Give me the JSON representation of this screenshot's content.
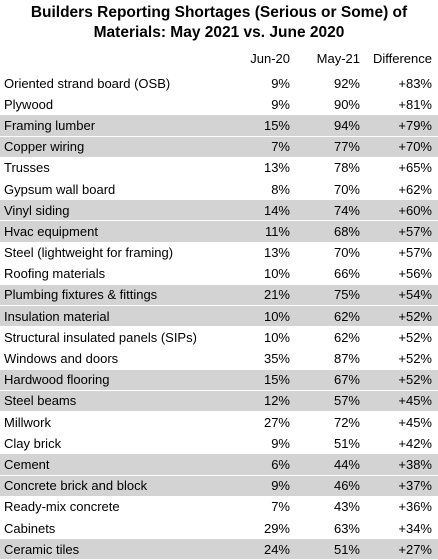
{
  "title": "Builders Reporting Shortages (Serious or Some) of Materials: May 2021 vs. June 2020",
  "columns": [
    "",
    "Jun-20",
    "May-21",
    "Difference"
  ],
  "rows": [
    {
      "name": "Oriented strand board (OSB)",
      "jun20": "9%",
      "may21": "92%",
      "diff": "+83%",
      "shaded": false
    },
    {
      "name": "Plywood",
      "jun20": "9%",
      "may21": "90%",
      "diff": "+81%",
      "shaded": false
    },
    {
      "name": "Framing lumber",
      "jun20": "15%",
      "may21": "94%",
      "diff": "+79%",
      "shaded": true
    },
    {
      "name": "Copper wiring",
      "jun20": "7%",
      "may21": "77%",
      "diff": "+70%",
      "shaded": true
    },
    {
      "name": "Trusses",
      "jun20": "13%",
      "may21": "78%",
      "diff": "+65%",
      "shaded": false
    },
    {
      "name": "Gypsum wall board",
      "jun20": "8%",
      "may21": "70%",
      "diff": "+62%",
      "shaded": false
    },
    {
      "name": "Vinyl siding",
      "jun20": "14%",
      "may21": "74%",
      "diff": "+60%",
      "shaded": true
    },
    {
      "name": "Hvac equipment",
      "jun20": "11%",
      "may21": "68%",
      "diff": "+57%",
      "shaded": true
    },
    {
      "name": "Steel (lightweight for framing)",
      "jun20": "13%",
      "may21": "70%",
      "diff": "+57%",
      "shaded": false
    },
    {
      "name": "Roofing materials",
      "jun20": "10%",
      "may21": "66%",
      "diff": "+56%",
      "shaded": false
    },
    {
      "name": "Plumbing fixtures & fittings",
      "jun20": "21%",
      "may21": "75%",
      "diff": "+54%",
      "shaded": true
    },
    {
      "name": "Insulation material",
      "jun20": "10%",
      "may21": "62%",
      "diff": "+52%",
      "shaded": true
    },
    {
      "name": "Structural insulated panels (SIPs)",
      "jun20": "10%",
      "may21": "62%",
      "diff": "+52%",
      "shaded": false
    },
    {
      "name": "Windows and doors",
      "jun20": "35%",
      "may21": "87%",
      "diff": "+52%",
      "shaded": false
    },
    {
      "name": "Hardwood flooring",
      "jun20": "15%",
      "may21": "67%",
      "diff": "+52%",
      "shaded": true
    },
    {
      "name": "Steel beams",
      "jun20": "12%",
      "may21": "57%",
      "diff": "+45%",
      "shaded": true
    },
    {
      "name": "Millwork",
      "jun20": "27%",
      "may21": "72%",
      "diff": "+45%",
      "shaded": false
    },
    {
      "name": "Clay brick",
      "jun20": "9%",
      "may21": "51%",
      "diff": "+42%",
      "shaded": false
    },
    {
      "name": "Cement",
      "jun20": "6%",
      "may21": "44%",
      "diff": "+38%",
      "shaded": true
    },
    {
      "name": "Concrete brick and block",
      "jun20": "9%",
      "may21": "46%",
      "diff": "+37%",
      "shaded": true
    },
    {
      "name": "Ready-mix concrete",
      "jun20": "7%",
      "may21": "43%",
      "diff": "+36%",
      "shaded": false
    },
    {
      "name": "Cabinets",
      "jun20": "29%",
      "may21": "63%",
      "diff": "+34%",
      "shaded": false
    },
    {
      "name": "Ceramic tiles",
      "jun20": "24%",
      "may21": "51%",
      "diff": "+27%",
      "shaded": true
    }
  ],
  "colors": {
    "shade": "#d3d3d3",
    "background": "#ffffff",
    "text": "#000000"
  }
}
